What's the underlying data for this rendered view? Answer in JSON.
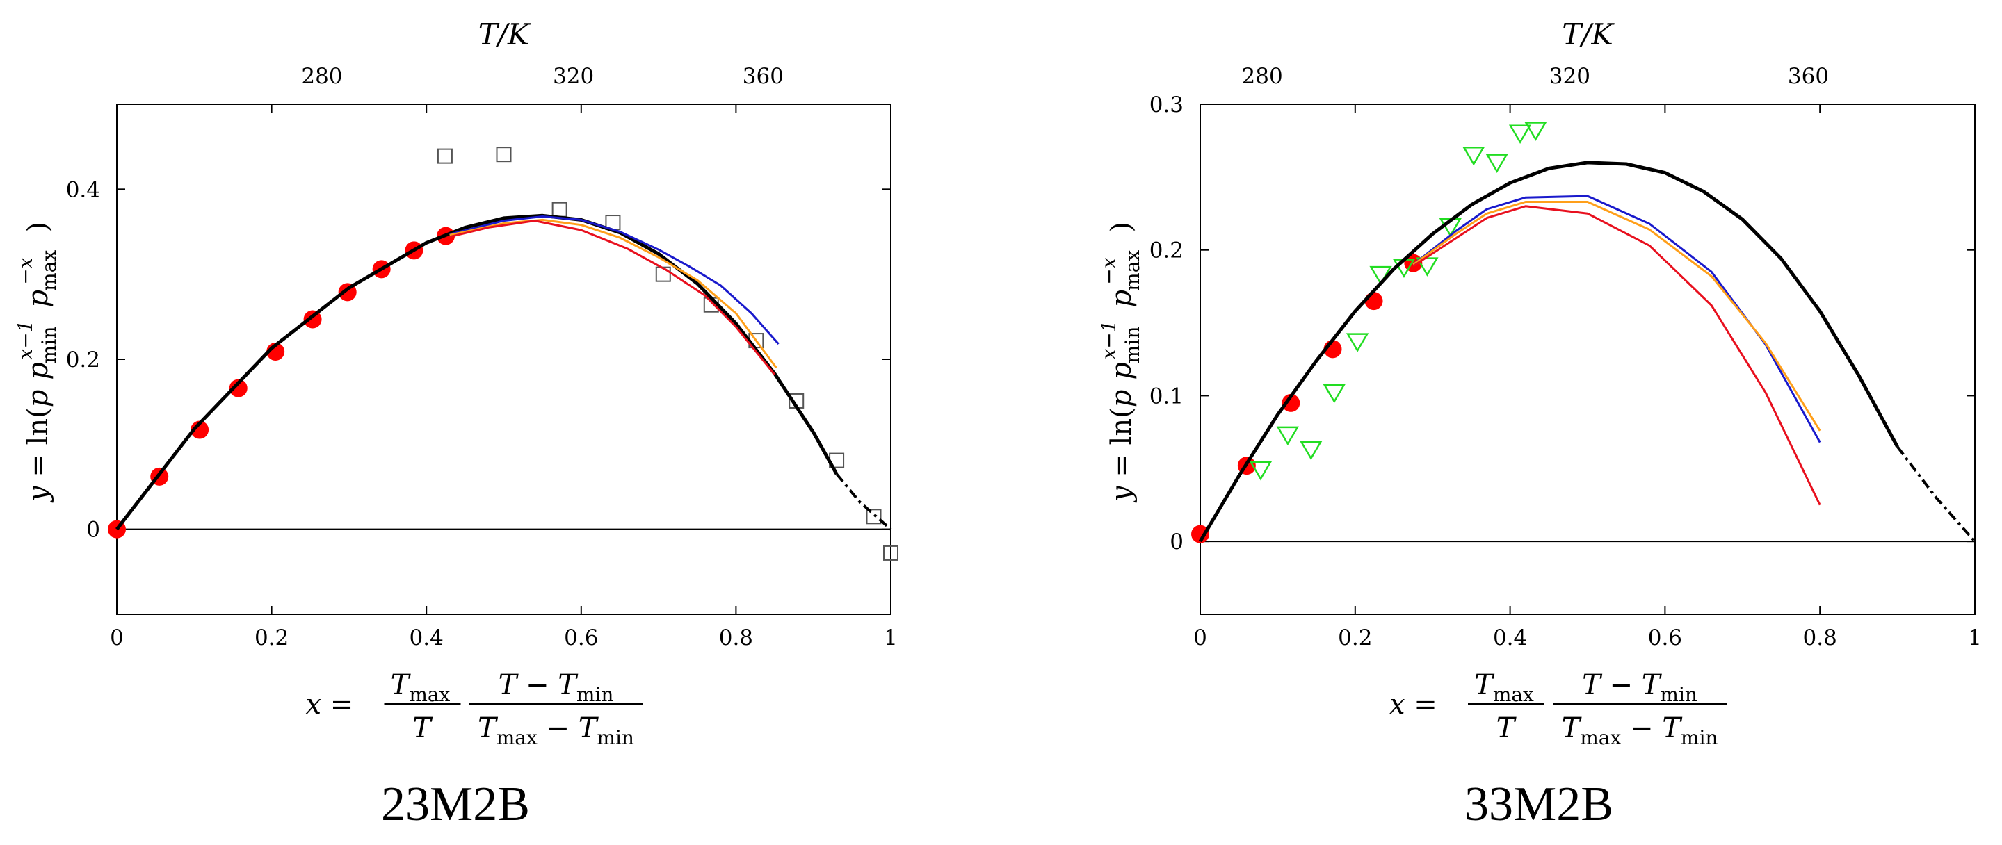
{
  "chart_data": [
    {
      "type": "scatter",
      "title": "23M2B",
      "x_axis": {
        "range": [
          0,
          1
        ],
        "ticks": [
          0,
          0.2,
          0.4,
          0.6,
          0.8,
          1
        ],
        "tick_labels": [
          "0",
          "0.2",
          "0.4",
          "0.6",
          "0.8",
          "1"
        ],
        "label_text": "x ="
      },
      "y_axis": {
        "range": [
          -0.1,
          0.5
        ],
        "ticks": [
          0,
          0.2,
          0.4
        ],
        "tick_labels": [
          "0",
          "0.2",
          "0.4"
        ],
        "label_text": "y = ln(p"
      },
      "top_axis": {
        "label": "T/K",
        "ticks": [
          {
            "label": "280",
            "x": 0.265
          },
          {
            "label": "320",
            "x": 0.59
          },
          {
            "label": "360",
            "x": 0.835
          }
        ]
      },
      "zero_line": true,
      "series": [
        {
          "kind": "markers",
          "marker": "filled-circle",
          "color": "#ff0000",
          "points": [
            [
              0,
              0
            ],
            [
              0.055,
              0.062
            ],
            [
              0.107,
              0.117
            ],
            [
              0.157,
              0.166
            ],
            [
              0.205,
              0.209
            ],
            [
              0.253,
              0.247
            ],
            [
              0.298,
              0.279
            ],
            [
              0.342,
              0.306
            ],
            [
              0.384,
              0.328
            ],
            [
              0.425,
              0.345
            ]
          ]
        },
        {
          "kind": "markers",
          "marker": "open-square",
          "color": "#555555",
          "points": [
            [
              0.424,
              0.439
            ],
            [
              0.5,
              0.441
            ],
            [
              0.572,
              0.376
            ],
            [
              0.641,
              0.361
            ],
            [
              0.706,
              0.3
            ],
            [
              0.768,
              0.264
            ],
            [
              0.826,
              0.222
            ],
            [
              0.878,
              0.151
            ],
            [
              0.93,
              0.081
            ],
            [
              0.978,
              0.015
            ],
            [
              1.0,
              -0.028
            ]
          ]
        },
        {
          "kind": "line",
          "color": "#000000",
          "width": 5,
          "points": [
            [
              0,
              0
            ],
            [
              0.1,
              0.118
            ],
            [
              0.2,
              0.213
            ],
            [
              0.3,
              0.284
            ],
            [
              0.4,
              0.337
            ],
            [
              0.45,
              0.355
            ],
            [
              0.5,
              0.366
            ],
            [
              0.55,
              0.369
            ],
            [
              0.6,
              0.364
            ],
            [
              0.65,
              0.349
            ],
            [
              0.7,
              0.324
            ],
            [
              0.75,
              0.289
            ],
            [
              0.8,
              0.242
            ],
            [
              0.85,
              0.183
            ],
            [
              0.9,
              0.114
            ],
            [
              0.93,
              0.065
            ]
          ]
        },
        {
          "kind": "line",
          "color": "#000000",
          "width": 4,
          "dash": "14,6,4,6",
          "points": [
            [
              0.93,
              0.065
            ],
            [
              0.96,
              0.032
            ],
            [
              0.985,
              0.012
            ],
            [
              1.0,
              0.0
            ]
          ]
        },
        {
          "kind": "line",
          "color": "#1a1acc",
          "width": 3,
          "points": [
            [
              0.43,
              0.347
            ],
            [
              0.5,
              0.363
            ],
            [
              0.55,
              0.368
            ],
            [
              0.6,
              0.364
            ],
            [
              0.65,
              0.35
            ],
            [
              0.7,
              0.329
            ],
            [
              0.74,
              0.309
            ],
            [
              0.78,
              0.287
            ],
            [
              0.82,
              0.254
            ],
            [
              0.855,
              0.218
            ]
          ]
        },
        {
          "kind": "line",
          "color": "#ff9f1a",
          "width": 3,
          "points": [
            [
              0.43,
              0.346
            ],
            [
              0.5,
              0.36
            ],
            [
              0.55,
              0.364
            ],
            [
              0.6,
              0.358
            ],
            [
              0.65,
              0.343
            ],
            [
              0.7,
              0.32
            ],
            [
              0.75,
              0.293
            ],
            [
              0.8,
              0.254
            ],
            [
              0.852,
              0.19
            ]
          ]
        },
        {
          "kind": "line",
          "color": "#e8101e",
          "width": 3,
          "points": [
            [
              0.43,
              0.344
            ],
            [
              0.48,
              0.355
            ],
            [
              0.54,
              0.363
            ],
            [
              0.6,
              0.352
            ],
            [
              0.66,
              0.33
            ],
            [
              0.71,
              0.305
            ],
            [
              0.76,
              0.275
            ],
            [
              0.8,
              0.238
            ],
            [
              0.85,
              0.182
            ]
          ]
        }
      ]
    },
    {
      "type": "scatter",
      "title": "33M2B",
      "x_axis": {
        "range": [
          0,
          1
        ],
        "ticks": [
          0,
          0.2,
          0.4,
          0.6,
          0.8,
          1
        ],
        "tick_labels": [
          "0",
          "0.2",
          "0.4",
          "0.6",
          "0.8",
          "1"
        ],
        "label_text": "x ="
      },
      "y_axis": {
        "range": [
          -0.05,
          0.3
        ],
        "ticks": [
          0,
          0.1,
          0.2,
          0.3
        ],
        "tick_labels": [
          "0",
          "0.1",
          "0.2",
          "0.3"
        ],
        "label_text": "y = ln(p"
      },
      "top_axis": {
        "label": "T/K",
        "ticks": [
          {
            "label": "280",
            "x": 0.08
          },
          {
            "label": "320",
            "x": 0.477
          },
          {
            "label": "360",
            "x": 0.785
          }
        ]
      },
      "zero_line": true,
      "series": [
        {
          "kind": "markers",
          "marker": "filled-circle",
          "color": "#ff0000",
          "points": [
            [
              0,
              0.005
            ],
            [
              0.06,
              0.052
            ],
            [
              0.117,
              0.095
            ],
            [
              0.171,
              0.132
            ],
            [
              0.224,
              0.165
            ],
            [
              0.275,
              0.191
            ]
          ]
        },
        {
          "kind": "markers",
          "marker": "open-triangle-down",
          "color": "#22dd22",
          "points": [
            [
              0.078,
              0.049
            ],
            [
              0.113,
              0.073
            ],
            [
              0.143,
              0.063
            ],
            [
              0.173,
              0.102
            ],
            [
              0.203,
              0.137
            ],
            [
              0.233,
              0.183
            ],
            [
              0.263,
              0.188
            ],
            [
              0.293,
              0.189
            ],
            [
              0.323,
              0.216
            ],
            [
              0.353,
              0.265
            ],
            [
              0.383,
              0.26
            ],
            [
              0.413,
              0.28
            ],
            [
              0.433,
              0.282
            ]
          ]
        },
        {
          "kind": "line",
          "color": "#000000",
          "width": 5,
          "points": [
            [
              0,
              0
            ],
            [
              0.05,
              0.045
            ],
            [
              0.1,
              0.087
            ],
            [
              0.15,
              0.124
            ],
            [
              0.2,
              0.158
            ],
            [
              0.25,
              0.187
            ],
            [
              0.3,
              0.211
            ],
            [
              0.35,
              0.231
            ],
            [
              0.4,
              0.246
            ],
            [
              0.45,
              0.256
            ],
            [
              0.5,
              0.26
            ],
            [
              0.55,
              0.259
            ],
            [
              0.6,
              0.253
            ],
            [
              0.65,
              0.24
            ],
            [
              0.7,
              0.221
            ],
            [
              0.75,
              0.194
            ],
            [
              0.8,
              0.158
            ],
            [
              0.85,
              0.114
            ],
            [
              0.9,
              0.065
            ]
          ]
        },
        {
          "kind": "line",
          "color": "#000000",
          "width": 4,
          "dash": "14,6,4,6",
          "points": [
            [
              0.9,
              0.065
            ],
            [
              0.95,
              0.03
            ],
            [
              0.98,
              0.012
            ],
            [
              1.0,
              0.0
            ]
          ]
        },
        {
          "kind": "line",
          "color": "#1a1acc",
          "width": 3,
          "points": [
            [
              0.275,
              0.19
            ],
            [
              0.33,
              0.213
            ],
            [
              0.37,
              0.228
            ],
            [
              0.42,
              0.236
            ],
            [
              0.5,
              0.237
            ],
            [
              0.58,
              0.218
            ],
            [
              0.66,
              0.185
            ],
            [
              0.73,
              0.135
            ],
            [
              0.8,
              0.068
            ]
          ]
        },
        {
          "kind": "line",
          "color": "#ff9f1a",
          "width": 3,
          "points": [
            [
              0.275,
              0.19
            ],
            [
              0.33,
              0.211
            ],
            [
              0.37,
              0.225
            ],
            [
              0.42,
              0.233
            ],
            [
              0.5,
              0.233
            ],
            [
              0.58,
              0.214
            ],
            [
              0.66,
              0.182
            ],
            [
              0.73,
              0.136
            ],
            [
              0.8,
              0.076
            ]
          ]
        },
        {
          "kind": "line",
          "color": "#e8101e",
          "width": 3,
          "points": [
            [
              0.275,
              0.189
            ],
            [
              0.33,
              0.208
            ],
            [
              0.37,
              0.222
            ],
            [
              0.42,
              0.23
            ],
            [
              0.5,
              0.225
            ],
            [
              0.58,
              0.203
            ],
            [
              0.66,
              0.162
            ],
            [
              0.73,
              0.102
            ],
            [
              0.8,
              0.025
            ]
          ]
        }
      ]
    }
  ]
}
